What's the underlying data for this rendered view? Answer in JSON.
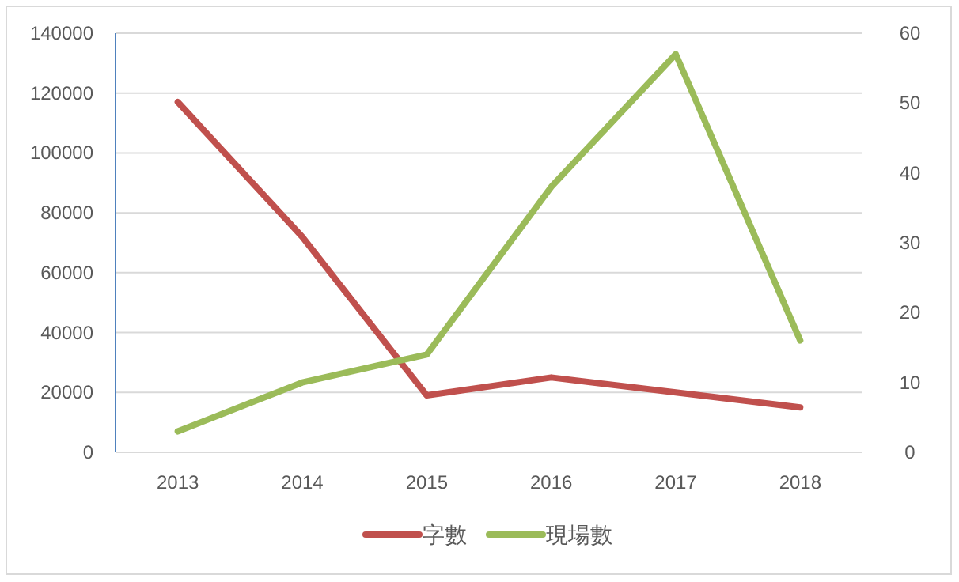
{
  "chart_data": {
    "type": "line",
    "categories": [
      "2013",
      "2014",
      "2015",
      "2016",
      "2017",
      "2018"
    ],
    "series": [
      {
        "name": "字數",
        "color": "#c0504d",
        "values": [
          117000,
          72000,
          19000,
          25000,
          20000,
          15000
        ]
      },
      {
        "name": "現場數",
        "color": "#9bbb59",
        "values": [
          3,
          10,
          14,
          38,
          57,
          16
        ],
        "axis": "y2"
      }
    ],
    "ylim": [
      0,
      140000
    ],
    "yticks": [
      0,
      20000,
      40000,
      60000,
      80000,
      100000,
      120000,
      140000
    ],
    "y2lim": [
      0,
      60
    ],
    "y2ticks": [
      0,
      10,
      20,
      30,
      40,
      50,
      60
    ],
    "grid": "y",
    "legend": "bottom",
    "marker": "none",
    "line_style": "solid"
  }
}
